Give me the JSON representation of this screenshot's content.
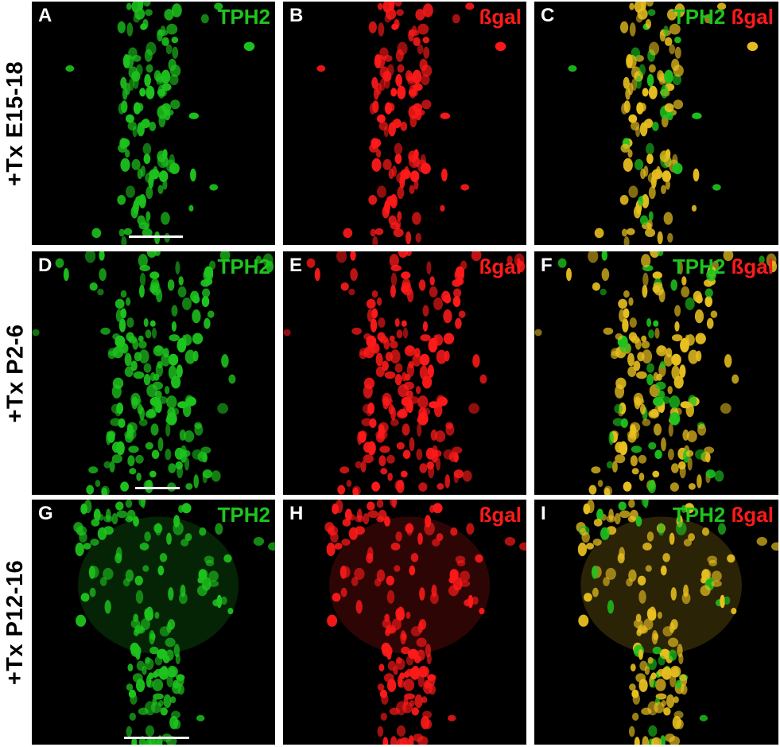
{
  "rows": [
    {
      "label": "+Tx E15-18"
    },
    {
      "label": "+Tx P2-6"
    },
    {
      "label": "+Tx P12-16"
    }
  ],
  "panels": [
    {
      "letter": "A",
      "marker": [
        "TPH2"
      ],
      "channel": "green"
    },
    {
      "letter": "B",
      "marker": [
        "ßgal"
      ],
      "channel": "red"
    },
    {
      "letter": "C",
      "marker": [
        "TPH2",
        "ßgal"
      ],
      "channel": "merge"
    },
    {
      "letter": "D",
      "marker": [
        "TPH2"
      ],
      "channel": "green"
    },
    {
      "letter": "E",
      "marker": [
        "ßgal"
      ],
      "channel": "red"
    },
    {
      "letter": "F",
      "marker": [
        "TPH2",
        "ßgal"
      ],
      "channel": "merge"
    },
    {
      "letter": "G",
      "marker": [
        "TPH2"
      ],
      "channel": "green"
    },
    {
      "letter": "H",
      "marker": [
        "ßgal"
      ],
      "channel": "red"
    },
    {
      "letter": "I",
      "marker": [
        "TPH2",
        "ßgal"
      ],
      "channel": "merge"
    }
  ],
  "colors": {
    "tph2": "#1ec41e",
    "bgal": "#ff1a1a",
    "merge": "#e8c020",
    "background": "#000000"
  }
}
